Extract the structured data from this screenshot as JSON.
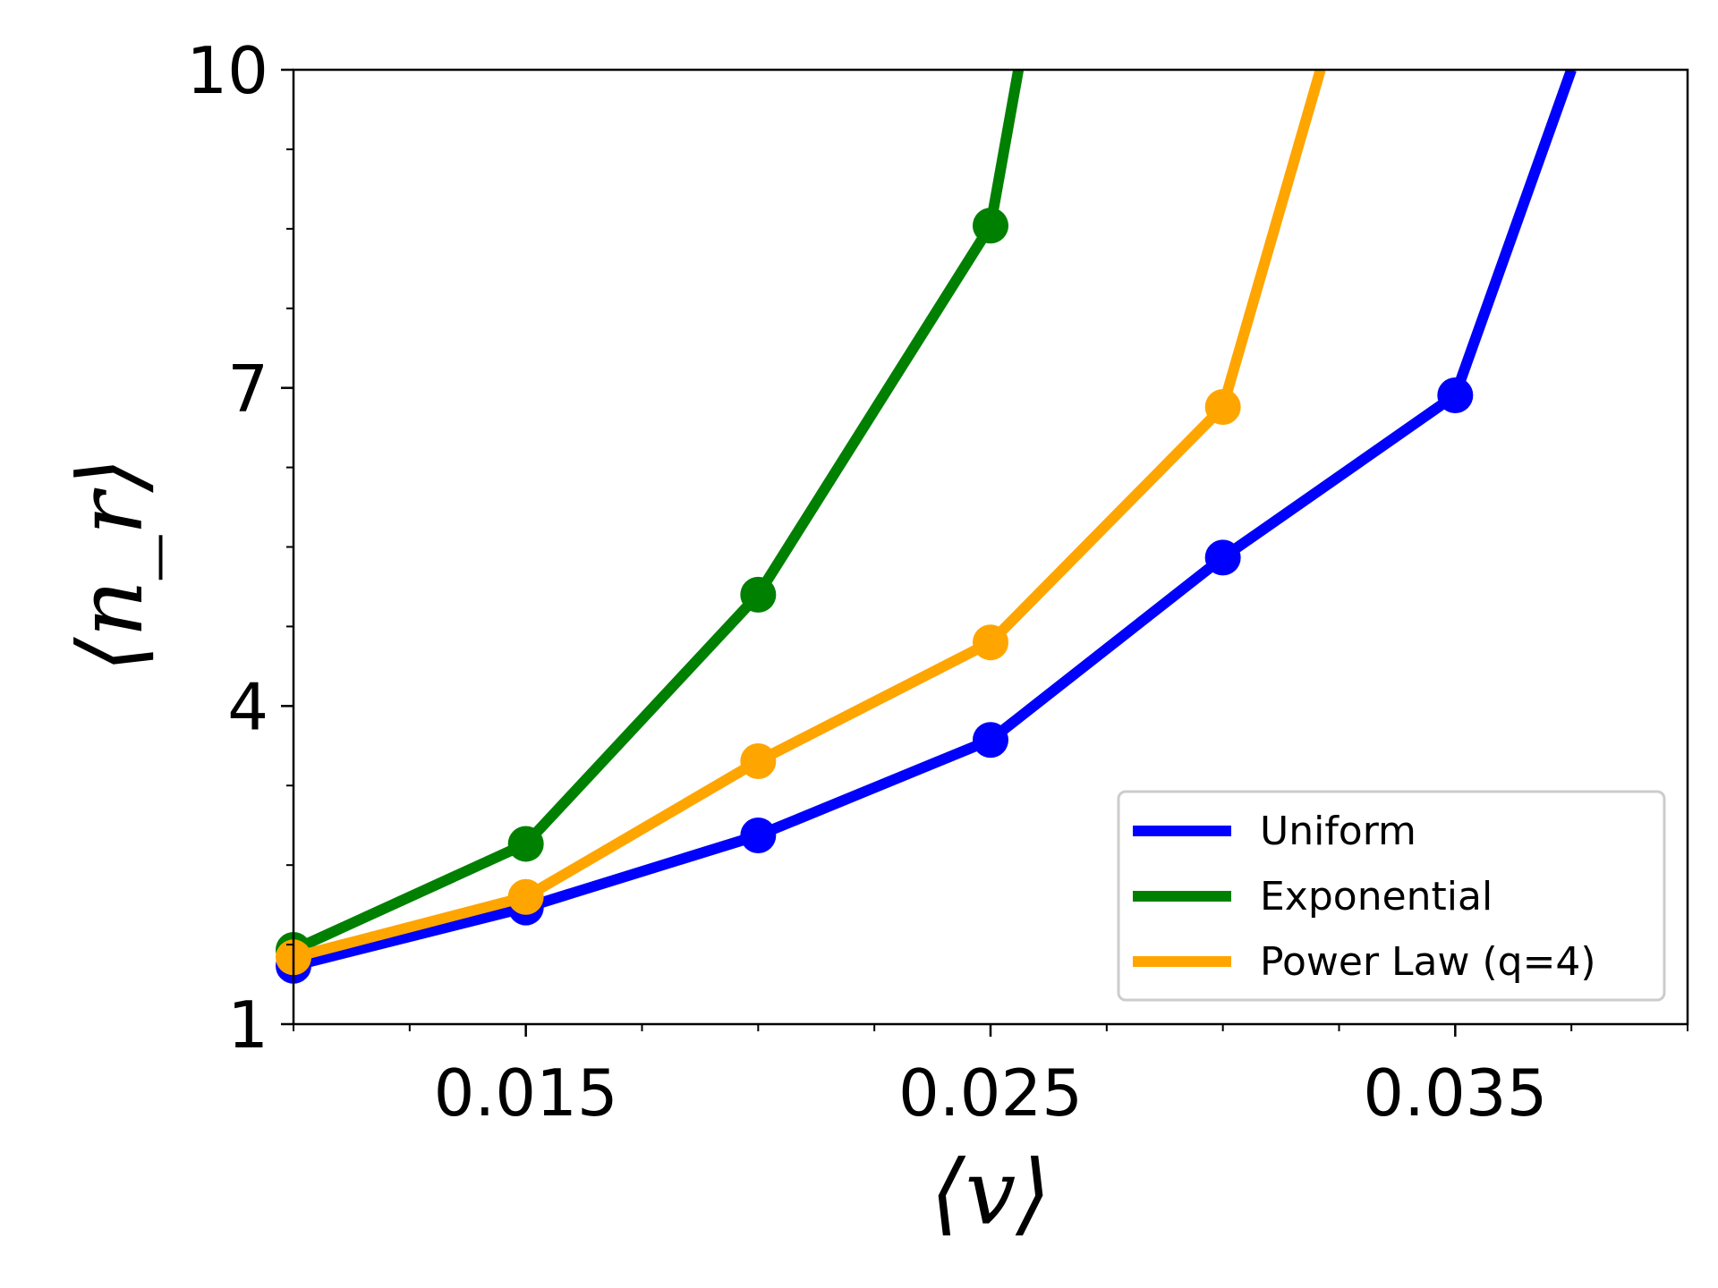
{
  "chart_data": {
    "type": "line",
    "xlabel": "⟨v⟩",
    "ylabel": "⟨n_r⟩",
    "xlim": [
      0.01,
      0.04
    ],
    "ylim": [
      1,
      10
    ],
    "xticks": [
      {
        "value": 0.015,
        "label": "0.015"
      },
      {
        "value": 0.025,
        "label": "0.025"
      },
      {
        "value": 0.035,
        "label": "0.035"
      }
    ],
    "yticks": [
      {
        "value": 1,
        "label": "1"
      },
      {
        "value": 4,
        "label": "4"
      },
      {
        "value": 7,
        "label": "7"
      },
      {
        "value": 10,
        "label": "10"
      }
    ],
    "grid": false,
    "legend_position": "lower-right",
    "series": [
      {
        "name": "Uniform",
        "color": "#0000ff",
        "x": [
          0.01,
          0.015,
          0.02,
          0.025,
          0.03,
          0.035,
          0.0375
        ],
        "y": [
          1.55,
          2.1,
          2.78,
          3.68,
          5.4,
          6.93,
          10.0
        ]
      },
      {
        "name": "Exponential",
        "color": "#008000",
        "x": [
          0.01,
          0.015,
          0.02,
          0.025,
          0.0256
        ],
        "y": [
          1.7,
          2.7,
          5.05,
          8.53,
          10.0
        ]
      },
      {
        "name": "Power Law (q=4)",
        "color": "#ffa500",
        "x": [
          0.01,
          0.015,
          0.02,
          0.025,
          0.03,
          0.0321
        ],
        "y": [
          1.63,
          2.2,
          3.48,
          4.6,
          6.82,
          10.0
        ]
      }
    ]
  }
}
